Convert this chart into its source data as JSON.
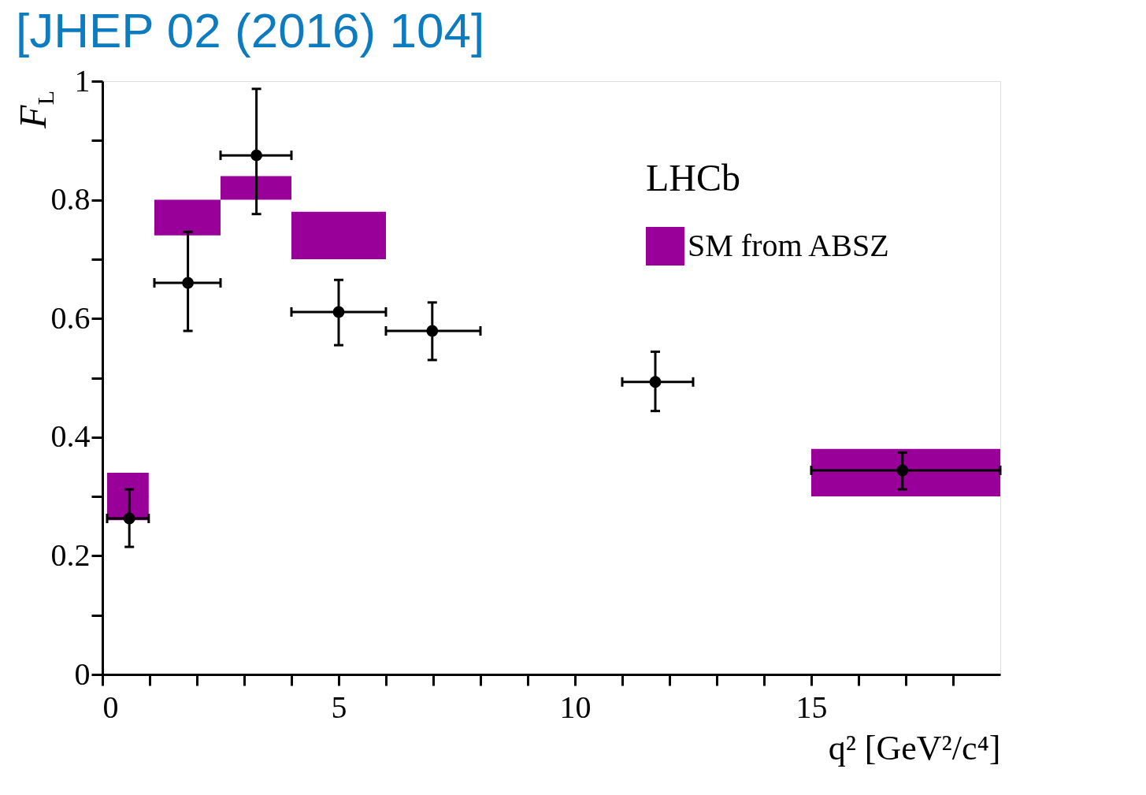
{
  "chart_data": {
    "type": "scatter",
    "title": "[JHEP 02 (2016) 104]",
    "xlabel": "q² [GeV²/c⁴]",
    "ylabel": "F$_{L}$",
    "xlim": [
      0,
      19
    ],
    "ylim": [
      0,
      1
    ],
    "xticks": [
      0,
      {
        "value": 1,
        "label": null
      },
      {
        "value": 2,
        "label": null
      },
      {
        "value": 3,
        "label": null
      },
      {
        "value": 4,
        "label": null
      },
      5,
      {
        "value": 6,
        "label": null
      },
      {
        "value": 7,
        "label": null
      },
      {
        "value": 8,
        "label": null
      },
      {
        "value": 9,
        "label": null
      },
      10,
      {
        "value": 11,
        "label": null
      },
      {
        "value": 12,
        "label": null
      },
      {
        "value": 13,
        "label": null
      },
      {
        "value": 14,
        "label": null
      },
      15,
      {
        "value": 16,
        "label": null
      },
      {
        "value": 17,
        "label": null
      },
      {
        "value": 18,
        "label": null
      }
    ],
    "yticks": [
      0,
      {
        "value": 0.1,
        "label": null
      },
      0.2,
      {
        "value": 0.3,
        "label": null
      },
      0.4,
      {
        "value": 0.5,
        "label": null
      },
      0.6,
      {
        "value": 0.7,
        "label": null
      },
      0.8,
      {
        "value": 0.9,
        "label": null
      },
      1
    ],
    "grid": false,
    "legend": "top right",
    "marker": "circle",
    "annotations": [
      "LHCb"
    ],
    "series": [
      {
        "type": "bar",
        "name": "SM from ABSZ",
        "color": "#990099",
        "x": [
          0.54,
          1.8,
          3.25,
          5.0,
          17.0
        ],
        "base": [
          0.26,
          0.74,
          0.8,
          0.7,
          0.3
        ],
        "values": [
          0.08,
          0.06,
          0.04,
          0.08,
          0.08
        ],
        "xerrors": [
          [
            0.1,
            0.98
          ],
          [
            1.1,
            2.5
          ],
          [
            2.5,
            4.0
          ],
          [
            4.0,
            6.0
          ],
          [
            15.0,
            19.0
          ]
        ]
      },
      {
        "color": "#000000",
        "x": [
          0.57,
          1.81,
          3.26,
          5.0,
          6.98,
          11.7,
          16.93
        ],
        "values": [
          0.263,
          0.66,
          0.875,
          0.611,
          0.579,
          0.493,
          0.344
        ],
        "errors": [
          [
            0.215,
            0.312
          ],
          [
            0.579,
            0.746
          ],
          [
            0.776,
            0.987
          ],
          [
            0.555,
            0.665
          ],
          [
            0.53,
            0.627
          ],
          [
            0.444,
            0.544
          ],
          [
            0.312,
            0.374
          ]
        ],
        "xerrors": [
          [
            0.1,
            0.98
          ],
          [
            1.1,
            2.5
          ],
          [
            2.5,
            4.0
          ],
          [
            4.0,
            6.0
          ],
          [
            6.0,
            8.0
          ],
          [
            11.0,
            12.5
          ],
          [
            15.0,
            19.0
          ]
        ]
      }
    ]
  }
}
